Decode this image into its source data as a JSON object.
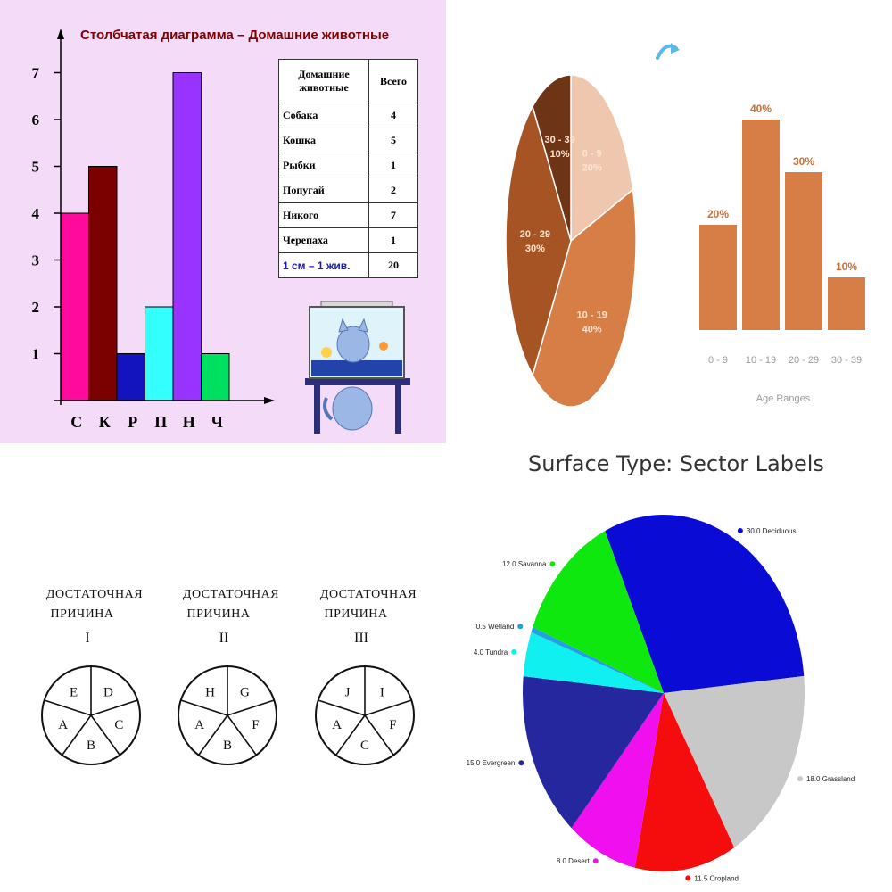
{
  "chart_data": [
    {
      "type": "bar",
      "title": "Столбчатая диаграмма – Домашние животные",
      "categories": [
        "С",
        "К",
        "Р",
        "П",
        "Н",
        "Ч"
      ],
      "values": [
        4,
        5,
        1,
        2,
        7,
        1
      ],
      "colors": [
        "#ff0a9c",
        "#7b0000",
        "#1414bf",
        "#33ffff",
        "#9933ff",
        "#00e060"
      ],
      "yticks": [
        "1",
        "2",
        "3",
        "4",
        "5",
        "6",
        "7"
      ],
      "ylim": [
        0,
        7
      ],
      "table": {
        "header": [
          "Домашние животные",
          "Всего"
        ],
        "rows": [
          {
            "name": "Собака",
            "value": "4"
          },
          {
            "name": "Кошка",
            "value": "5"
          },
          {
            "name": "Рыбки",
            "value": "1"
          },
          {
            "name": "Попугай",
            "value": "2"
          },
          {
            "name": "Никого",
            "value": "7"
          },
          {
            "name": "Черепаха",
            "value": "1"
          }
        ],
        "footer": {
          "name": "1 см – 1 жив.",
          "value": "20"
        }
      }
    },
    {
      "type": "pie",
      "slices": [
        {
          "label": "0 - 9",
          "value": 20,
          "text": "20%",
          "color": "#efc7ae"
        },
        {
          "label": "10 - 19",
          "value": 40,
          "text": "40%",
          "color": "#d67e45"
        },
        {
          "label": "20 - 29",
          "value": 30,
          "text": "30%",
          "color": "#a75424"
        },
        {
          "label": "30 - 39",
          "value": 10,
          "text": "10%",
          "color": "#6d3416"
        }
      ]
    },
    {
      "type": "bar",
      "categories": [
        "0 - 9",
        "10 - 19",
        "20 - 29",
        "30 - 39"
      ],
      "values": [
        20,
        40,
        30,
        10
      ],
      "labels": [
        "20%",
        "40%",
        "30%",
        "10%"
      ],
      "xlabel": "Age Ranges",
      "color": "#d67e45"
    },
    {
      "type": "pie",
      "title": "Surface Type: Sector Labels",
      "slices": [
        {
          "label": "Deciduous",
          "value": 30.0,
          "text": "30.0",
          "color": "#0b0bd6"
        },
        {
          "label": "Grassland",
          "value": 18.0,
          "text": "18.0",
          "color": "#c8c8c8"
        },
        {
          "label": "Cropland",
          "value": 11.5,
          "text": "11.5",
          "color": "#f50d0d"
        },
        {
          "label": "Desert",
          "value": 8.0,
          "text": "8.0",
          "color": "#ef0fef"
        },
        {
          "label": "Evergreen",
          "value": 15.0,
          "text": "15.0",
          "color": "#25279f"
        },
        {
          "label": "Tundra",
          "value": 4.0,
          "text": "4.0",
          "color": "#11f0f0"
        },
        {
          "label": "Wetland",
          "value": 0.5,
          "text": "0.5",
          "color": "#22a0e0"
        },
        {
          "label": "Savanna",
          "value": 12.0,
          "text": "12.0",
          "color": "#0ee80e"
        }
      ]
    }
  ],
  "diagram": {
    "circles": [
      {
        "caption_line1": "ДОСТАТОЧНАЯ",
        "caption_line2": "ПРИЧИНА",
        "numeral": "I",
        "sectors": [
          "E",
          "D",
          "C",
          "B",
          "A"
        ]
      },
      {
        "caption_line1": "ДОСТАТОЧНАЯ",
        "caption_line2": "ПРИЧИНА",
        "numeral": "II",
        "sectors": [
          "H",
          "G",
          "F",
          "B",
          "A"
        ]
      },
      {
        "caption_line1": "ДОСТАТОЧНАЯ",
        "caption_line2": "ПРИЧИНА",
        "numeral": "III",
        "sectors": [
          "J",
          "I",
          "F",
          "C",
          "A"
        ]
      }
    ]
  },
  "colors": {
    "arrow_icon": "#5bb8e8",
    "grid_outline": "#000000"
  },
  "icons": [
    "cat-aquarium-illustration",
    "curved-arrow-icon"
  ]
}
